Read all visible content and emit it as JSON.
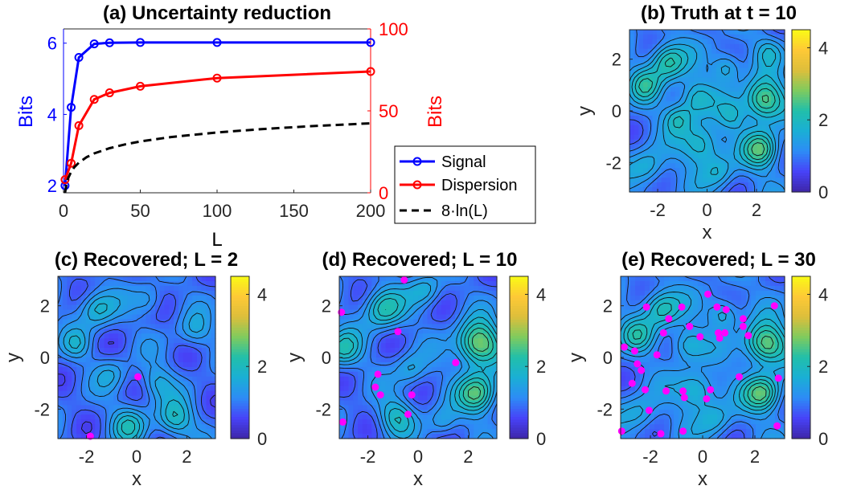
{
  "colormap": [
    "#3e26a8",
    "#4743f8",
    "#2d8cf6",
    "#1aafd5",
    "#21bfaa",
    "#7fcb5e",
    "#ddbe3b",
    "#fec936",
    "#f9fb15"
  ],
  "chart_data": [
    {
      "id": "a",
      "type": "line",
      "title": "(a) Uncertainty reduction",
      "xlabel": "L",
      "ylabel_left": "Bits",
      "ylabel_right": "Bits",
      "xlim": [
        0,
        200
      ],
      "ylim_left": [
        1.8,
        6.4
      ],
      "ylim_right": [
        0,
        100
      ],
      "xticks": [
        0,
        50,
        100,
        150,
        200
      ],
      "yticks_left": [
        2,
        4,
        6
      ],
      "yticks_right": [
        0,
        50,
        100
      ],
      "left_color": "#0000ff",
      "right_color": "#ff0000",
      "legend_position": "bottom-right",
      "series": [
        {
          "name": "Signal",
          "axis": "left",
          "color": "#0000ff",
          "marker": "circle",
          "dash": "solid",
          "x": [
            1,
            5,
            10,
            20,
            30,
            50,
            100,
            200
          ],
          "y": [
            2.0,
            4.2,
            5.6,
            5.98,
            6.01,
            6.02,
            6.02,
            6.02
          ]
        },
        {
          "name": "Dispersion",
          "axis": "right",
          "color": "#ff0000",
          "marker": "circle",
          "dash": "solid",
          "x": [
            1,
            5,
            10,
            20,
            30,
            50,
            100,
            200
          ],
          "y": [
            8,
            18,
            41,
            57,
            61,
            65,
            70,
            74
          ]
        },
        {
          "name": "8·ln(L)",
          "axis": "right",
          "color": "#000000",
          "marker": "none",
          "dash": "dashed",
          "x": [
            1,
            2,
            3,
            5,
            7,
            10,
            15,
            20,
            30,
            40,
            50,
            70,
            100,
            130,
            160,
            200
          ],
          "y": [
            0,
            5.5,
            8.8,
            12.9,
            15.6,
            18.4,
            21.7,
            24.0,
            27.2,
            29.5,
            31.3,
            34.0,
            36.8,
            38.9,
            40.6,
            42.4
          ]
        }
      ]
    },
    {
      "id": "b",
      "type": "heatmap",
      "title": "(b) Truth at t = 10",
      "xlabel": "x",
      "ylabel": "y",
      "xlim": [
        -3.14,
        3.14
      ],
      "ylim": [
        -3.14,
        3.14
      ],
      "xticks": [
        -2,
        0,
        2
      ],
      "yticks": [
        -2,
        0,
        2
      ],
      "clim": [
        0,
        4.5
      ],
      "colorbar_ticks": [
        0,
        2,
        4
      ],
      "blobs": [
        [
          2.3,
          0.4,
          1.9,
          0.55
        ],
        [
          2.2,
          -1.5,
          1.5,
          0.5
        ],
        [
          -0.2,
          -1.3,
          1.2,
          0.55
        ],
        [
          -0.5,
          0.5,
          1.0,
          0.5
        ],
        [
          -1.6,
          1.9,
          1.4,
          0.5
        ],
        [
          -2.5,
          1.0,
          1.0,
          0.45
        ],
        [
          -1.2,
          -0.3,
          0.9,
          0.4
        ],
        [
          0.8,
          1.7,
          0.9,
          0.4
        ],
        [
          1.0,
          -0.2,
          0.7,
          0.4
        ],
        [
          -2.4,
          -2.2,
          0.8,
          0.5
        ],
        [
          0.5,
          -2.4,
          0.7,
          0.45
        ],
        [
          2.5,
          2.3,
          0.6,
          0.4
        ]
      ],
      "base": 1.0,
      "points": []
    },
    {
      "id": "c",
      "type": "heatmap",
      "title": "(c) Recovered; L = 2",
      "xlabel": "x",
      "ylabel": "y",
      "xlim": [
        -3.14,
        3.14
      ],
      "ylim": [
        -3.14,
        3.14
      ],
      "xticks": [
        -2,
        0,
        2
      ],
      "yticks": [
        -2,
        0,
        2
      ],
      "clim": [
        0,
        4.5
      ],
      "colorbar_ticks": [
        0,
        2,
        4
      ],
      "blobs": [
        [
          -1.6,
          1.9,
          1.0,
          0.5
        ],
        [
          1.5,
          -2.4,
          1.1,
          0.5
        ],
        [
          -0.3,
          -2.6,
          0.9,
          0.5
        ],
        [
          2.3,
          1.0,
          0.6,
          0.45
        ],
        [
          0.8,
          -1.0,
          0.7,
          0.45
        ],
        [
          -2.4,
          0.5,
          0.6,
          0.4
        ],
        [
          0.5,
          2.2,
          0.6,
          0.4
        ],
        [
          -1.0,
          -0.6,
          0.5,
          0.45
        ]
      ],
      "base": 0.9,
      "points": [
        [
          0.05,
          -0.75
        ],
        [
          -1.85,
          -3.05
        ]
      ]
    },
    {
      "id": "d",
      "type": "heatmap",
      "title": "(d) Recovered; L = 10",
      "xlabel": "x",
      "ylabel": "y",
      "xlim": [
        -3.14,
        3.14
      ],
      "ylim": [
        -3.14,
        3.14
      ],
      "xticks": [
        -2,
        0,
        2
      ],
      "yticks": [
        -2,
        0,
        2
      ],
      "clim": [
        0,
        4.5
      ],
      "colorbar_ticks": [
        0,
        2,
        4
      ],
      "blobs": [
        [
          2.4,
          0.5,
          2.1,
          0.6
        ],
        [
          2.4,
          -1.4,
          1.7,
          0.55
        ],
        [
          -1.4,
          1.9,
          1.3,
          0.55
        ],
        [
          -3.0,
          0.3,
          1.1,
          0.5
        ],
        [
          -0.9,
          -2.3,
          1.0,
          0.5
        ],
        [
          0.3,
          2.6,
          0.8,
          0.45
        ],
        [
          -0.3,
          -0.5,
          0.7,
          0.45
        ],
        [
          1.0,
          -2.5,
          0.7,
          0.4
        ]
      ],
      "base": 0.9,
      "points": [
        [
          -3.05,
          1.75
        ],
        [
          -0.55,
          3.0
        ],
        [
          -0.8,
          1.0
        ],
        [
          1.5,
          -0.2
        ],
        [
          -1.6,
          -0.65
        ],
        [
          -1.7,
          -1.15
        ],
        [
          -1.5,
          -1.45
        ],
        [
          -0.25,
          -1.45
        ],
        [
          -0.4,
          -2.2
        ],
        [
          -3.0,
          -2.5
        ]
      ]
    },
    {
      "id": "e",
      "type": "heatmap",
      "title": "(e) Recovered; L = 30",
      "xlabel": "x",
      "ylabel": "y",
      "xlim": [
        -3.14,
        3.14
      ],
      "ylim": [
        -3.14,
        3.14
      ],
      "xticks": [
        -2,
        0,
        2
      ],
      "yticks": [
        -2,
        0,
        2
      ],
      "clim": [
        0,
        4.5
      ],
      "colorbar_ticks": [
        0,
        2,
        4
      ],
      "blobs": [
        [
          2.4,
          0.5,
          1.9,
          0.55
        ],
        [
          2.3,
          -1.4,
          1.6,
          0.5
        ],
        [
          -0.2,
          -1.3,
          1.1,
          0.5
        ],
        [
          -0.6,
          0.5,
          0.9,
          0.45
        ],
        [
          -1.6,
          1.9,
          1.2,
          0.5
        ],
        [
          -2.5,
          0.9,
          0.9,
          0.45
        ],
        [
          0.8,
          1.7,
          0.9,
          0.4
        ],
        [
          -2.4,
          -2.2,
          0.7,
          0.5
        ],
        [
          0.5,
          -2.4,
          0.7,
          0.45
        ]
      ],
      "base": 1.0,
      "points": [
        [
          0.2,
          2.45
        ],
        [
          -2.15,
          1.95
        ],
        [
          -0.8,
          1.95
        ],
        [
          0.55,
          1.95
        ],
        [
          0.9,
          1.85
        ],
        [
          1.55,
          1.5
        ],
        [
          -1.3,
          1.5
        ],
        [
          1.55,
          1.2
        ],
        [
          -0.5,
          1.2
        ],
        [
          2.75,
          2.0
        ],
        [
          -1.5,
          0.95
        ],
        [
          0.6,
          0.95
        ],
        [
          0.85,
          0.95
        ],
        [
          -0.1,
          0.8
        ],
        [
          0.65,
          0.75
        ],
        [
          1.75,
          0.85
        ],
        [
          -3.0,
          0.4
        ],
        [
          -2.6,
          0.25
        ],
        [
          -1.75,
          0.1
        ],
        [
          -2.5,
          -0.25
        ],
        [
          -2.35,
          -0.5
        ],
        [
          -2.7,
          -1.0
        ],
        [
          1.4,
          -0.75
        ],
        [
          2.9,
          -0.8
        ],
        [
          -2.2,
          -1.25
        ],
        [
          -1.4,
          -1.3
        ],
        [
          -0.75,
          -1.3
        ],
        [
          0.3,
          -1.25
        ],
        [
          -0.7,
          -1.55
        ],
        [
          0.15,
          -1.6
        ],
        [
          -2.05,
          -2.05
        ],
        [
          2.85,
          -2.65
        ],
        [
          -3.1,
          -2.85
        ],
        [
          -1.6,
          -2.95
        ],
        [
          -0.75,
          -2.85
        ]
      ]
    }
  ]
}
